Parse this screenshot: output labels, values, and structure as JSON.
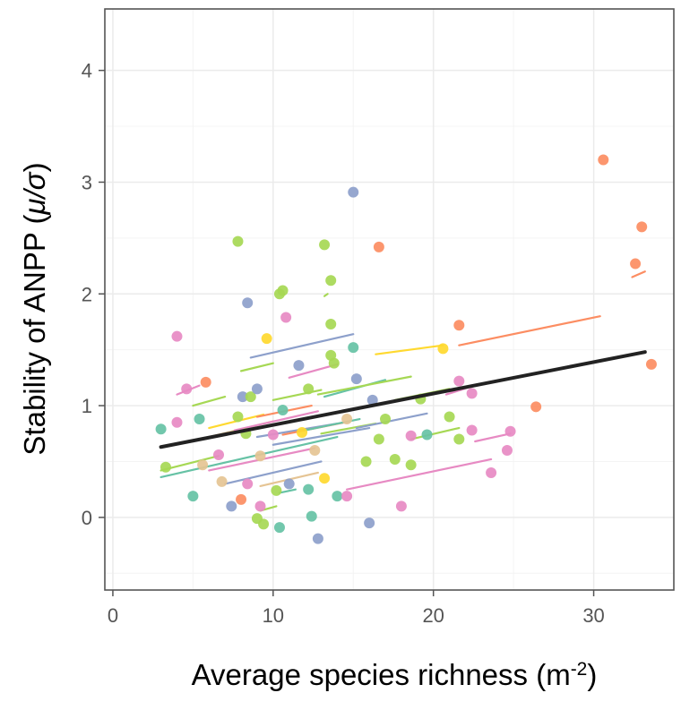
{
  "chart_data": {
    "type": "scatter",
    "ylabel_parts": [
      "Stability of  ANPP (",
      "μ/σ",
      ")"
    ],
    "xlabel_parts": [
      "Average species richness (m",
      "-2",
      ")"
    ],
    "xlim": [
      -0.5,
      35.0
    ],
    "ylim": [
      -0.65,
      4.55
    ],
    "xticks": [
      0,
      10,
      20,
      30
    ],
    "yticks": [
      0,
      1,
      2,
      3,
      4
    ],
    "grid": true,
    "overall_fit": {
      "x": [
        3.0,
        33.2
      ],
      "y": [
        0.63,
        1.48
      ],
      "color": "#222222"
    },
    "points": [
      {
        "x": 3.0,
        "y": 0.79,
        "color": "#66c2a5"
      },
      {
        "x": 3.3,
        "y": 0.45,
        "color": "#a6d854"
      },
      {
        "x": 4.0,
        "y": 0.85,
        "color": "#e78ac3"
      },
      {
        "x": 4.0,
        "y": 1.62,
        "color": "#e78ac3"
      },
      {
        "x": 4.6,
        "y": 1.15,
        "color": "#e78ac3"
      },
      {
        "x": 5.0,
        "y": 0.19,
        "color": "#66c2a5"
      },
      {
        "x": 5.4,
        "y": 0.88,
        "color": "#66c2a5"
      },
      {
        "x": 5.8,
        "y": 1.21,
        "color": "#fc8d62"
      },
      {
        "x": 5.6,
        "y": 0.47,
        "color": "#e5c494"
      },
      {
        "x": 6.6,
        "y": 0.56,
        "color": "#e78ac3"
      },
      {
        "x": 6.8,
        "y": 0.32,
        "color": "#e5c494"
      },
      {
        "x": 7.4,
        "y": 0.1,
        "color": "#8da0cb"
      },
      {
        "x": 7.8,
        "y": 2.47,
        "color": "#a6d854"
      },
      {
        "x": 7.8,
        "y": 0.9,
        "color": "#a6d854"
      },
      {
        "x": 8.0,
        "y": 0.16,
        "color": "#fc8d62"
      },
      {
        "x": 8.1,
        "y": 1.08,
        "color": "#8da0cb"
      },
      {
        "x": 8.4,
        "y": 1.92,
        "color": "#8da0cb"
      },
      {
        "x": 8.3,
        "y": 0.75,
        "color": "#a6d854"
      },
      {
        "x": 8.6,
        "y": 1.08,
        "color": "#a6d854"
      },
      {
        "x": 8.4,
        "y": 0.3,
        "color": "#e78ac3"
      },
      {
        "x": 9.0,
        "y": 1.15,
        "color": "#8da0cb"
      },
      {
        "x": 9.2,
        "y": 0.55,
        "color": "#e5c494"
      },
      {
        "x": 9.0,
        "y": -0.01,
        "color": "#a6d854"
      },
      {
        "x": 9.4,
        "y": -0.06,
        "color": "#a6d854"
      },
      {
        "x": 9.2,
        "y": 0.1,
        "color": "#e78ac3"
      },
      {
        "x": 9.6,
        "y": 1.6,
        "color": "#ffd92f"
      },
      {
        "x": 10.0,
        "y": 0.74,
        "color": "#e78ac3"
      },
      {
        "x": 10.2,
        "y": 0.24,
        "color": "#a6d854"
      },
      {
        "x": 10.4,
        "y": 2.0,
        "color": "#a6d854"
      },
      {
        "x": 10.6,
        "y": 2.03,
        "color": "#a6d854"
      },
      {
        "x": 10.4,
        "y": -0.09,
        "color": "#66c2a5"
      },
      {
        "x": 10.6,
        "y": 0.96,
        "color": "#66c2a5"
      },
      {
        "x": 10.8,
        "y": 1.79,
        "color": "#e78ac3"
      },
      {
        "x": 11.0,
        "y": 0.3,
        "color": "#8da0cb"
      },
      {
        "x": 11.6,
        "y": 1.36,
        "color": "#8da0cb"
      },
      {
        "x": 11.8,
        "y": 0.76,
        "color": "#ffd92f"
      },
      {
        "x": 12.2,
        "y": 0.25,
        "color": "#66c2a5"
      },
      {
        "x": 12.2,
        "y": 1.15,
        "color": "#a6d854"
      },
      {
        "x": 12.4,
        "y": 0.01,
        "color": "#66c2a5"
      },
      {
        "x": 12.6,
        "y": 0.6,
        "color": "#e5c494"
      },
      {
        "x": 12.8,
        "y": -0.19,
        "color": "#8da0cb"
      },
      {
        "x": 13.2,
        "y": 2.44,
        "color": "#a6d854"
      },
      {
        "x": 13.2,
        "y": 0.35,
        "color": "#ffd92f"
      },
      {
        "x": 13.6,
        "y": 2.12,
        "color": "#a6d854"
      },
      {
        "x": 13.6,
        "y": 1.73,
        "color": "#a6d854"
      },
      {
        "x": 13.6,
        "y": 1.45,
        "color": "#a6d854"
      },
      {
        "x": 13.8,
        "y": 1.38,
        "color": "#a6d854"
      },
      {
        "x": 14.0,
        "y": 0.19,
        "color": "#66c2a5"
      },
      {
        "x": 14.6,
        "y": 0.88,
        "color": "#e5c494"
      },
      {
        "x": 14.6,
        "y": 0.19,
        "color": "#e78ac3"
      },
      {
        "x": 15.0,
        "y": 2.91,
        "color": "#8da0cb"
      },
      {
        "x": 15.0,
        "y": 1.52,
        "color": "#66c2a5"
      },
      {
        "x": 15.2,
        "y": 1.24,
        "color": "#8da0cb"
      },
      {
        "x": 15.8,
        "y": 0.5,
        "color": "#a6d854"
      },
      {
        "x": 16.0,
        "y": -0.05,
        "color": "#8da0cb"
      },
      {
        "x": 16.2,
        "y": 1.05,
        "color": "#8da0cb"
      },
      {
        "x": 16.6,
        "y": 2.42,
        "color": "#fc8d62"
      },
      {
        "x": 16.6,
        "y": 0.7,
        "color": "#a6d854"
      },
      {
        "x": 17.0,
        "y": 0.88,
        "color": "#a6d854"
      },
      {
        "x": 17.6,
        "y": 0.52,
        "color": "#a6d854"
      },
      {
        "x": 18.0,
        "y": 0.1,
        "color": "#e78ac3"
      },
      {
        "x": 18.6,
        "y": 0.47,
        "color": "#a6d854"
      },
      {
        "x": 18.6,
        "y": 0.73,
        "color": "#e78ac3"
      },
      {
        "x": 19.2,
        "y": 1.06,
        "color": "#a6d854"
      },
      {
        "x": 19.6,
        "y": 0.74,
        "color": "#66c2a5"
      },
      {
        "x": 20.6,
        "y": 1.51,
        "color": "#ffd92f"
      },
      {
        "x": 21.0,
        "y": 0.9,
        "color": "#a6d854"
      },
      {
        "x": 21.6,
        "y": 0.7,
        "color": "#a6d854"
      },
      {
        "x": 21.6,
        "y": 1.72,
        "color": "#fc8d62"
      },
      {
        "x": 21.6,
        "y": 1.22,
        "color": "#e78ac3"
      },
      {
        "x": 22.4,
        "y": 1.11,
        "color": "#e78ac3"
      },
      {
        "x": 22.4,
        "y": 0.78,
        "color": "#e78ac3"
      },
      {
        "x": 23.6,
        "y": 0.4,
        "color": "#e78ac3"
      },
      {
        "x": 24.6,
        "y": 0.6,
        "color": "#e78ac3"
      },
      {
        "x": 24.8,
        "y": 0.77,
        "color": "#e78ac3"
      },
      {
        "x": 26.4,
        "y": 0.99,
        "color": "#fc8d62"
      },
      {
        "x": 30.6,
        "y": 3.2,
        "color": "#fc8d62"
      },
      {
        "x": 32.6,
        "y": 2.27,
        "color": "#fc8d62"
      },
      {
        "x": 33.0,
        "y": 2.6,
        "color": "#fc8d62"
      },
      {
        "x": 33.6,
        "y": 1.37,
        "color": "#fc8d62"
      }
    ],
    "group_lines": [
      {
        "x": [
          8.6,
          15.0
        ],
        "y": [
          1.43,
          1.64
        ],
        "color": "#8da0cb"
      },
      {
        "x": [
          8.0,
          10.0
        ],
        "y": [
          1.31,
          1.38
        ],
        "color": "#a6d854"
      },
      {
        "x": [
          16.4,
          20.6
        ],
        "y": [
          1.46,
          1.54
        ],
        "color": "#ffd92f"
      },
      {
        "x": [
          21.6,
          30.4
        ],
        "y": [
          1.54,
          1.8
        ],
        "color": "#fc8d62"
      },
      {
        "x": [
          32.4,
          33.2
        ],
        "y": [
          2.15,
          2.2
        ],
        "color": "#fc8d62"
      },
      {
        "x": [
          13.2,
          13.4
        ],
        "y": [
          1.98,
          2.0
        ],
        "color": "#a6d854"
      },
      {
        "x": [
          11.0,
          14.0
        ],
        "y": [
          1.25,
          1.37
        ],
        "color": "#e78ac3"
      },
      {
        "x": [
          13.2,
          17.0
        ],
        "y": [
          1.08,
          1.23
        ],
        "color": "#66c2a5"
      },
      {
        "x": [
          4.0,
          5.4
        ],
        "y": [
          1.1,
          1.18
        ],
        "color": "#e78ac3"
      },
      {
        "x": [
          5.0,
          7.0
        ],
        "y": [
          1.0,
          1.08
        ],
        "color": "#a6d854"
      },
      {
        "x": [
          10.0,
          13.0
        ],
        "y": [
          1.05,
          1.14
        ],
        "color": "#a6d854"
      },
      {
        "x": [
          12.8,
          18.6
        ],
        "y": [
          1.1,
          1.26
        ],
        "color": "#a6d854"
      },
      {
        "x": [
          17.6,
          21.0
        ],
        "y": [
          1.05,
          1.15
        ],
        "color": "#a6d854"
      },
      {
        "x": [
          20.8,
          22.6
        ],
        "y": [
          1.1,
          1.18
        ],
        "color": "#e78ac3"
      },
      {
        "x": [
          6.0,
          9.4
        ],
        "y": [
          0.8,
          0.92
        ],
        "color": "#ffd92f"
      },
      {
        "x": [
          9.0,
          12.4
        ],
        "y": [
          0.9,
          1.0
        ],
        "color": "#fc8d62"
      },
      {
        "x": [
          6.0,
          10.0
        ],
        "y": [
          0.72,
          0.86
        ],
        "color": "#e5c494"
      },
      {
        "x": [
          9.0,
          14.0
        ],
        "y": [
          0.72,
          0.84
        ],
        "color": "#8da0cb"
      },
      {
        "x": [
          7.6,
          12.8
        ],
        "y": [
          0.78,
          0.95
        ],
        "color": "#e78ac3"
      },
      {
        "x": [
          10.6,
          14.8
        ],
        "y": [
          0.74,
          0.86
        ],
        "color": "#fc8d62"
      },
      {
        "x": [
          12.0,
          15.4
        ],
        "y": [
          0.78,
          0.88
        ],
        "color": "#66c2a5"
      },
      {
        "x": [
          13.0,
          16.4
        ],
        "y": [
          0.75,
          0.84
        ],
        "color": "#a6d854"
      },
      {
        "x": [
          10.0,
          16.0
        ],
        "y": [
          0.65,
          0.8
        ],
        "color": "#8da0cb"
      },
      {
        "x": [
          15.2,
          19.6
        ],
        "y": [
          0.8,
          0.93
        ],
        "color": "#8da0cb"
      },
      {
        "x": [
          3.0,
          6.6
        ],
        "y": [
          0.42,
          0.55
        ],
        "color": "#a6d854"
      },
      {
        "x": [
          3.0,
          14.0
        ],
        "y": [
          0.36,
          0.72
        ],
        "color": "#66c2a5"
      },
      {
        "x": [
          6.0,
          12.6
        ],
        "y": [
          0.42,
          0.62
        ],
        "color": "#e78ac3"
      },
      {
        "x": [
          7.0,
          13.0
        ],
        "y": [
          0.3,
          0.5
        ],
        "color": "#8da0cb"
      },
      {
        "x": [
          9.2,
          12.8
        ],
        "y": [
          0.28,
          0.4
        ],
        "color": "#e5c494"
      },
      {
        "x": [
          14.6,
          23.6
        ],
        "y": [
          0.25,
          0.52
        ],
        "color": "#e78ac3"
      },
      {
        "x": [
          18.6,
          21.6
        ],
        "y": [
          0.7,
          0.8
        ],
        "color": "#a6d854"
      },
      {
        "x": [
          22.6,
          24.8
        ],
        "y": [
          0.68,
          0.75
        ],
        "color": "#e78ac3"
      },
      {
        "x": [
          10.4,
          11.4
        ],
        "y": [
          0.22,
          0.25
        ],
        "color": "#66c2a5"
      },
      {
        "x": [
          9.2,
          10.2
        ],
        "y": [
          0.06,
          0.1
        ],
        "color": "#a6d854"
      }
    ]
  }
}
